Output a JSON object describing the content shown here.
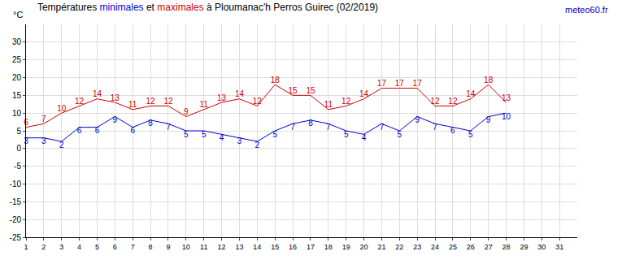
{
  "chart_data": {
    "type": "line",
    "title": "Températures minimales et maximales à Ploumanac'h Perros Guirec (02/2019)",
    "y_label": "°C",
    "annotations": [
      {
        "text": "meteo60.fr"
      }
    ],
    "x": [
      1,
      2,
      3,
      4,
      5,
      6,
      7,
      8,
      9,
      10,
      11,
      12,
      13,
      14,
      15,
      16,
      17,
      18,
      19,
      20,
      21,
      22,
      23,
      24,
      25,
      26,
      27,
      28,
      29,
      30,
      31
    ],
    "series": [
      {
        "name": "minimales",
        "color": "#0000cc",
        "values": [
          3,
          3,
          2,
          6,
          6,
          9,
          6,
          8,
          7,
          5,
          5,
          4,
          3,
          2,
          5,
          7,
          8,
          7,
          5,
          4,
          7,
          5,
          9,
          7,
          6,
          5,
          9,
          10,
          null,
          null,
          null
        ]
      },
      {
        "name": "maximales",
        "color": "#cc0000",
        "values": [
          6,
          7,
          10,
          12,
          14,
          13,
          11,
          12,
          12,
          9,
          11,
          13,
          14,
          12,
          18,
          15,
          15,
          11,
          12,
          14,
          17,
          17,
          17,
          12,
          12,
          14,
          18,
          13,
          null,
          null,
          null
        ]
      }
    ],
    "xlim": [
      1,
      32
    ],
    "xticks": [
      1,
      2,
      3,
      4,
      5,
      6,
      7,
      8,
      9,
      10,
      11,
      12,
      13,
      14,
      15,
      16,
      17,
      18,
      19,
      20,
      21,
      22,
      23,
      24,
      25,
      26,
      27,
      28,
      29,
      30,
      31
    ],
    "ylim": [
      -25,
      35
    ],
    "yticks": [
      -25,
      -20,
      -15,
      -10,
      -5,
      0,
      5,
      10,
      15,
      20,
      25,
      30
    ],
    "grid": true,
    "data_labels": true
  }
}
